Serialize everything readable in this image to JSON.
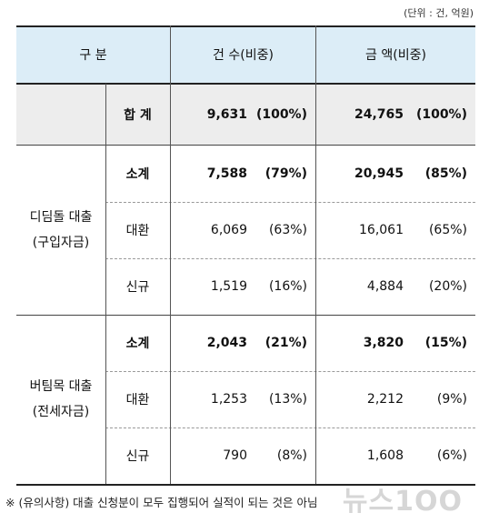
{
  "unit_note": "(단위 : 건, 억원)",
  "header": {
    "division": "구  분",
    "count": "건 수(비중)",
    "amount": "금  액(비중)"
  },
  "total": {
    "label": "합  계",
    "count": "9,631",
    "count_share": "(100%)",
    "amount": "24,765",
    "amount_share": "(100%)"
  },
  "groups": [
    {
      "name": "디딤돌 대출",
      "sub": "(구입자금)",
      "rows": [
        {
          "label": "소계",
          "count": "7,588",
          "count_share": "(79%)",
          "amount": "20,945",
          "amount_share": "(85%)"
        },
        {
          "label": "대환",
          "count": "6,069",
          "count_share": "(63%)",
          "amount": "16,061",
          "amount_share": "(65%)"
        },
        {
          "label": "신규",
          "count": "1,519",
          "count_share": "(16%)",
          "amount": "4,884",
          "amount_share": "(20%)"
        }
      ]
    },
    {
      "name": "버팀목 대출",
      "sub": "(전세자금)",
      "rows": [
        {
          "label": "소계",
          "count": "2,043",
          "count_share": "(21%)",
          "amount": "3,820",
          "amount_share": "(15%)"
        },
        {
          "label": "대환",
          "count": "1,253",
          "count_share": "(13%)",
          "amount": "2,212",
          "amount_share": "(9%)"
        },
        {
          "label": "신규",
          "count": "790",
          "count_share": "(8%)",
          "amount": "1,608",
          "amount_share": "(6%)"
        }
      ]
    }
  ],
  "footnote": "※ (유의사항) 대출 신청분이 모두 집행되어 실적이 되는 것은 아님",
  "watermark": "뉴스1OO"
}
